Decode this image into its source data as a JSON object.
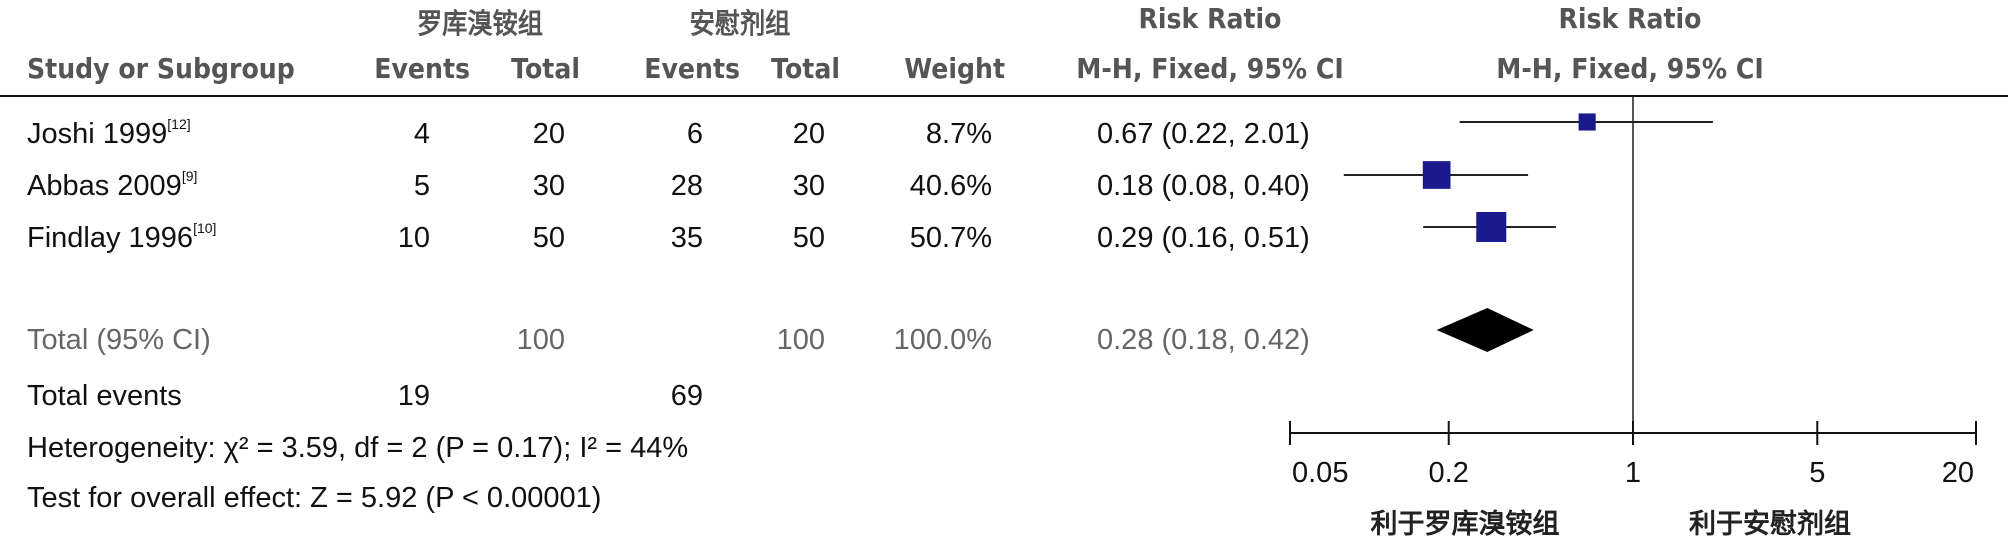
{
  "header": {
    "group1": "罗库溴铵组",
    "group2": "安慰剂组",
    "rr_title": "Risk Ratio",
    "rr_title_plot": "Risk Ratio",
    "study_col": "Study or Subgroup",
    "events1": "Events",
    "total1": "Total",
    "events2": "Events",
    "total2": "Total",
    "weight": "Weight",
    "method": "M-H, Fixed, 95% CI",
    "method_plot": "M-H, Fixed, 95% CI"
  },
  "studies": [
    {
      "name": "Joshi 1999",
      "ref": "[12]",
      "events1": "4",
      "total1": "20",
      "events2": "6",
      "total2": "20",
      "weight": "8.7%",
      "ci_text": "0.67 (0.22, 2.01)"
    },
    {
      "name": "Abbas 2009",
      "ref": "[9]",
      "events1": "5",
      "total1": "30",
      "events2": "28",
      "total2": "30",
      "weight": "40.6%",
      "ci_text": "0.18 (0.08, 0.40)"
    },
    {
      "name": "Findlay 1996",
      "ref": "[10]",
      "events1": "10",
      "total1": "50",
      "events2": "35",
      "total2": "50",
      "weight": "50.7%",
      "ci_text": "0.29 (0.16, 0.51)"
    }
  ],
  "total": {
    "label": "Total (95% CI)",
    "total1": "100",
    "total2": "100",
    "weight": "100.0%",
    "ci_text": "0.28 (0.18, 0.42)"
  },
  "total_events": {
    "label": "Total events",
    "events1": "19",
    "events2": "69"
  },
  "heterogeneity": "Heterogeneity: χ² = 3.59, df = 2 (P = 0.17); I² = 44%",
  "overall_effect": "Test for overall effect: Z = 5.92 (P < 0.00001)",
  "axis": {
    "favours_left": "利于罗库溴铵组",
    "favours_right": "利于安慰剂组"
  },
  "colors": {
    "marker": "#1a1a8c",
    "line": "#222222",
    "diamond": "#000000"
  },
  "chart_data": {
    "type": "forest",
    "scale": "log",
    "xlim": [
      0.05,
      20
    ],
    "ticks": [
      0.05,
      0.2,
      1,
      5,
      20
    ],
    "tick_labels": [
      "0.05",
      "0.2",
      "1",
      "5",
      "20"
    ],
    "studies": [
      {
        "name": "Joshi 1999",
        "rr": 0.67,
        "lower": 0.22,
        "upper": 2.01,
        "weight": 8.7
      },
      {
        "name": "Abbas 2009",
        "rr": 0.18,
        "lower": 0.08,
        "upper": 0.4,
        "weight": 40.6
      },
      {
        "name": "Findlay 1996",
        "rr": 0.29,
        "lower": 0.16,
        "upper": 0.51,
        "weight": 50.7
      }
    ],
    "pooled": {
      "rr": 0.28,
      "lower": 0.18,
      "upper": 0.42
    }
  }
}
